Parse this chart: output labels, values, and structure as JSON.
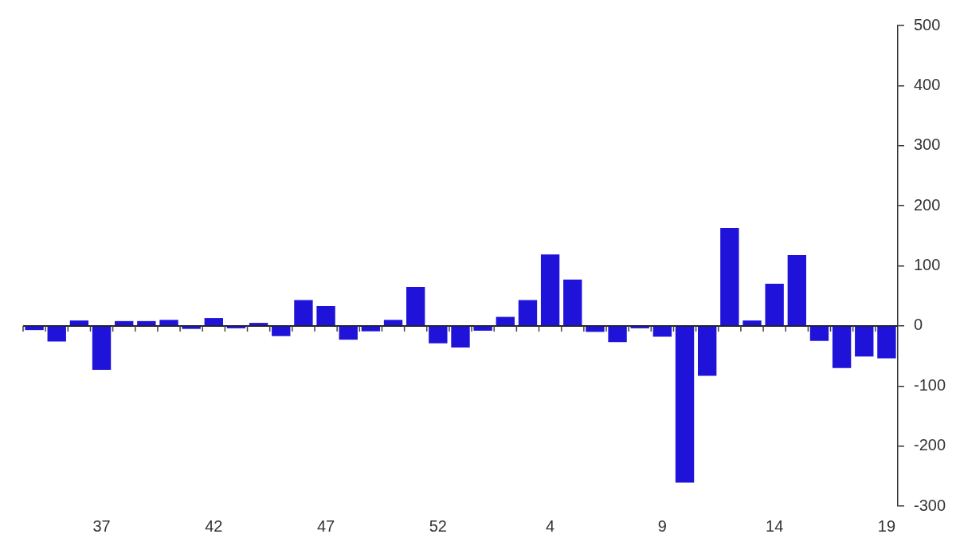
{
  "chart_data": {
    "type": "bar",
    "categories": [
      null,
      null,
      null,
      "37",
      null,
      null,
      null,
      null,
      "42",
      null,
      null,
      null,
      null,
      "47",
      null,
      null,
      null,
      null,
      "52",
      null,
      null,
      null,
      null,
      "4",
      null,
      null,
      null,
      null,
      "9",
      null,
      null,
      null,
      null,
      "14",
      null,
      null,
      null,
      null,
      "19"
    ],
    "values": [
      -7,
      -26,
      9,
      -73,
      8,
      8,
      10,
      -5,
      13,
      -4,
      5,
      -17,
      43,
      33,
      -23,
      -9,
      10,
      65,
      -29,
      -36,
      -8,
      15,
      43,
      119,
      77,
      -10,
      -27,
      -4,
      -18,
      -261,
      -83,
      163,
      9,
      70,
      118,
      -25,
      -70,
      -51,
      -54
    ],
    "color": "#1f12d9",
    "ylim": [
      -300,
      500
    ],
    "yticks": [
      -300,
      -200,
      -100,
      0,
      100,
      200,
      300,
      400,
      500
    ]
  }
}
